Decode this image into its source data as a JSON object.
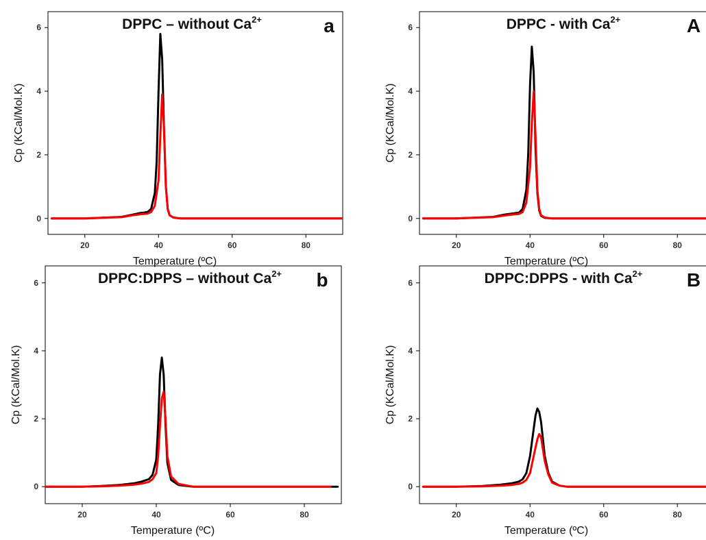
{
  "colors": {
    "control": "#000000",
    "treated": "#ff0000"
  },
  "chart_data": [
    {
      "type": "line",
      "title": "DPPC – without Ca²⁺",
      "title_main": "DPPC – without Ca",
      "title_sup": "2+",
      "panel_label": "a",
      "xlabel": "Temperature (ºC)",
      "ylabel": "Cp (KCal/Mol.K)",
      "xlim": [
        10,
        90
      ],
      "ylim": [
        -0.5,
        6.5
      ],
      "xticks": [
        20,
        40,
        60,
        80
      ],
      "yticks": [
        0,
        2,
        4,
        6
      ],
      "grid": false,
      "series": [
        {
          "color": "#000000",
          "x": [
            11,
            20,
            30,
            33,
            35,
            37,
            38,
            39,
            39.5,
            40,
            40.5,
            41,
            41.5,
            42,
            42.5,
            43,
            44,
            46,
            50,
            60,
            90
          ],
          "y": [
            0,
            0,
            0.05,
            0.12,
            0.17,
            0.2,
            0.3,
            0.8,
            1.8,
            4.0,
            5.8,
            5.0,
            2.8,
            1.0,
            0.3,
            0.1,
            0.03,
            0,
            0,
            0,
            0
          ]
        },
        {
          "color": "#ff0000",
          "x": [
            11,
            20,
            30,
            33,
            35,
            37,
            38,
            39,
            40,
            40.5,
            41,
            41.5,
            42,
            42.5,
            43,
            44,
            46,
            50,
            60,
            90
          ],
          "y": [
            0,
            0,
            0.04,
            0.1,
            0.13,
            0.15,
            0.2,
            0.4,
            1.2,
            2.6,
            3.9,
            2.8,
            1.0,
            0.3,
            0.1,
            0.03,
            0,
            0,
            0,
            0
          ]
        }
      ]
    },
    {
      "type": "line",
      "title": "DPPC - with Ca²⁺",
      "title_main": "DPPC - with Ca",
      "title_sup": "2+",
      "panel_label": "A",
      "xlabel": "Temperature (ºC)",
      "ylabel": "Cp (KCal/Mol.K)",
      "xlim": [
        10,
        90
      ],
      "ylim": [
        -0.5,
        6.5
      ],
      "xticks": [
        20,
        40,
        60,
        80
      ],
      "yticks": [
        0,
        2,
        4,
        6
      ],
      "grid": false,
      "series": [
        {
          "color": "#000000",
          "x": [
            11,
            20,
            30,
            33,
            35,
            37,
            38,
            39,
            39.5,
            40,
            40.5,
            41,
            41.5,
            42,
            42.5,
            43,
            44,
            46,
            50,
            60,
            90
          ],
          "y": [
            0,
            0,
            0.05,
            0.12,
            0.15,
            0.18,
            0.3,
            0.9,
            2.0,
            4.2,
            5.4,
            4.6,
            2.2,
            0.8,
            0.25,
            0.08,
            0.02,
            0,
            0,
            0,
            0
          ]
        },
        {
          "color": "#ff0000",
          "x": [
            11,
            20,
            30,
            33,
            35,
            37,
            38,
            39,
            40,
            40.5,
            41,
            41.5,
            42,
            42.5,
            43,
            44,
            46,
            50,
            60,
            90
          ],
          "y": [
            0,
            0,
            0.04,
            0.09,
            0.12,
            0.14,
            0.2,
            0.5,
            1.6,
            3.0,
            4.0,
            2.6,
            0.9,
            0.3,
            0.1,
            0.03,
            0,
            0,
            0,
            0
          ]
        }
      ]
    },
    {
      "type": "line",
      "title": "DPPC:DPPS – without Ca²⁺",
      "title_main": "DPPC:DPPS – without Ca",
      "title_sup": "2+",
      "panel_label": "b",
      "xlabel": "Temperature (ºC)",
      "ylabel": "Cp (KCal/Mol.K)",
      "xlim": [
        10,
        90
      ],
      "ylim": [
        -0.5,
        6.5
      ],
      "xticks": [
        20,
        40,
        60,
        80
      ],
      "yticks": [
        0,
        2,
        4,
        6
      ],
      "grid": false,
      "series": [
        {
          "color": "#000000",
          "x": [
            10,
            20,
            25,
            30,
            34,
            36,
            38,
            39,
            40,
            40.5,
            41,
            41.5,
            42,
            42.5,
            43,
            44,
            46,
            50,
            60,
            89
          ],
          "y": [
            0,
            0,
            0.02,
            0.05,
            0.1,
            0.15,
            0.22,
            0.35,
            0.8,
            1.8,
            3.3,
            3.8,
            3.3,
            1.8,
            0.7,
            0.2,
            0.05,
            0,
            0,
            0
          ]
        },
        {
          "color": "#ff0000",
          "x": [
            10,
            20,
            25,
            30,
            34,
            36,
            38,
            39,
            40,
            40.5,
            41,
            41.5,
            42,
            42.5,
            43,
            44,
            46,
            50,
            60,
            87
          ],
          "y": [
            0,
            0,
            0.01,
            0.03,
            0.06,
            0.09,
            0.14,
            0.22,
            0.4,
            0.9,
            1.8,
            2.6,
            2.8,
            2.0,
            0.9,
            0.3,
            0.08,
            0,
            0,
            0
          ]
        }
      ]
    },
    {
      "type": "line",
      "title": "DPPC:DPPS - with Ca²⁺",
      "title_main": "DPPC:DPPS - with Ca",
      "title_sup": "2+",
      "panel_label": "B",
      "xlabel": "Temperature (ºC)",
      "ylabel": "Cp (KCal/Mol.K)",
      "xlim": [
        10,
        90
      ],
      "ylim": [
        -0.5,
        6.5
      ],
      "xticks": [
        20,
        40,
        60,
        80
      ],
      "yticks": [
        0,
        2,
        4,
        6
      ],
      "grid": false,
      "series": [
        {
          "color": "#000000",
          "x": [
            11,
            20,
            27,
            32,
            35,
            37,
            38,
            39,
            40,
            41,
            41.5,
            42,
            42.5,
            43,
            43.5,
            44,
            45,
            46,
            48,
            50,
            60,
            90
          ],
          "y": [
            0,
            0,
            0.02,
            0.06,
            0.1,
            0.15,
            0.22,
            0.4,
            0.9,
            1.7,
            2.1,
            2.3,
            2.2,
            1.9,
            1.4,
            0.9,
            0.4,
            0.15,
            0.03,
            0,
            0,
            0
          ]
        },
        {
          "color": "#ff0000",
          "x": [
            11,
            20,
            27,
            32,
            35,
            37,
            38,
            39,
            40,
            41,
            42,
            42.5,
            43,
            43.5,
            44,
            45,
            46,
            48,
            50,
            60,
            90
          ],
          "y": [
            0,
            0,
            0.01,
            0.03,
            0.05,
            0.08,
            0.12,
            0.2,
            0.4,
            0.9,
            1.4,
            1.55,
            1.45,
            1.1,
            0.75,
            0.35,
            0.12,
            0.03,
            0,
            0,
            0
          ]
        }
      ]
    }
  ]
}
